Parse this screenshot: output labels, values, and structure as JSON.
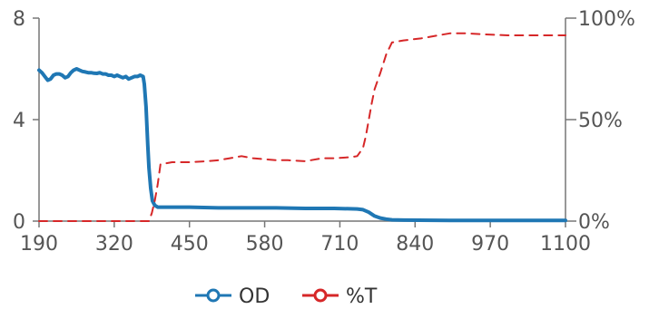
{
  "chart_data": {
    "type": "line",
    "title": "",
    "xlabel": "",
    "x_range": [
      190,
      1100
    ],
    "x_ticks": [
      "190",
      "320",
      "450",
      "580",
      "710",
      "840",
      "970",
      "1100"
    ],
    "x_tick_values": [
      190,
      320,
      450,
      580,
      710,
      840,
      970,
      1100
    ],
    "y_left": {
      "label": "",
      "range": [
        0,
        8
      ],
      "ticks": [
        "0",
        "4",
        "8"
      ],
      "tick_values": [
        0,
        4,
        8
      ]
    },
    "y_right": {
      "label": "",
      "range": [
        0,
        100
      ],
      "ticks": [
        "0%",
        "50%",
        "100%"
      ],
      "tick_values": [
        0,
        50,
        100
      ]
    },
    "grid": false,
    "legend_position": "bottom",
    "series": [
      {
        "name": "OD",
        "axis": "left",
        "color": "#1f77b4",
        "style": "solid",
        "marker": "circle",
        "x": [
          190,
          195,
          200,
          205,
          210,
          215,
          220,
          225,
          230,
          235,
          240,
          245,
          250,
          255,
          260,
          265,
          270,
          275,
          280,
          285,
          290,
          295,
          300,
          305,
          310,
          315,
          320,
          325,
          330,
          335,
          340,
          345,
          350,
          355,
          360,
          365,
          370,
          372,
          375,
          378,
          380,
          383,
          386,
          390,
          395,
          400,
          405,
          410,
          420,
          450,
          500,
          550,
          600,
          650,
          700,
          740,
          750,
          760,
          770,
          780,
          790,
          800,
          820,
          900,
          1000,
          1100
        ],
        "y": [
          5.95,
          5.85,
          5.7,
          5.55,
          5.6,
          5.75,
          5.8,
          5.8,
          5.75,
          5.65,
          5.7,
          5.85,
          5.95,
          6.0,
          5.95,
          5.9,
          5.88,
          5.85,
          5.85,
          5.83,
          5.82,
          5.85,
          5.8,
          5.8,
          5.75,
          5.75,
          5.7,
          5.75,
          5.7,
          5.65,
          5.7,
          5.6,
          5.65,
          5.7,
          5.7,
          5.75,
          5.7,
          5.4,
          4.5,
          3.0,
          2.1,
          1.3,
          0.8,
          0.62,
          0.55,
          0.55,
          0.55,
          0.55,
          0.55,
          0.55,
          0.52,
          0.52,
          0.52,
          0.5,
          0.5,
          0.48,
          0.45,
          0.35,
          0.2,
          0.12,
          0.08,
          0.05,
          0.04,
          0.03,
          0.03,
          0.03
        ]
      },
      {
        "name": "%T",
        "axis": "right",
        "color": "#d62728",
        "style": "dashed",
        "marker": "circle",
        "x": [
          190,
          250,
          300,
          350,
          380,
          385,
          390,
          395,
          400,
          420,
          450,
          480,
          500,
          520,
          540,
          560,
          580,
          600,
          620,
          650,
          680,
          700,
          730,
          740,
          750,
          755,
          760,
          765,
          770,
          780,
          790,
          800,
          820,
          850,
          880,
          900,
          930,
          960,
          1000,
          1050,
          1100
        ],
        "y": [
          0,
          0,
          0,
          0,
          0,
          4,
          10,
          18,
          28,
          29,
          29,
          29.5,
          30,
          31,
          32,
          31,
          30.5,
          30,
          30,
          29.5,
          31,
          31,
          31.5,
          32,
          36,
          42,
          50,
          58,
          65,
          73,
          82,
          88,
          89,
          90,
          91.5,
          92.5,
          92.5,
          92,
          91.5,
          91.5,
          91.5
        ]
      }
    ]
  }
}
